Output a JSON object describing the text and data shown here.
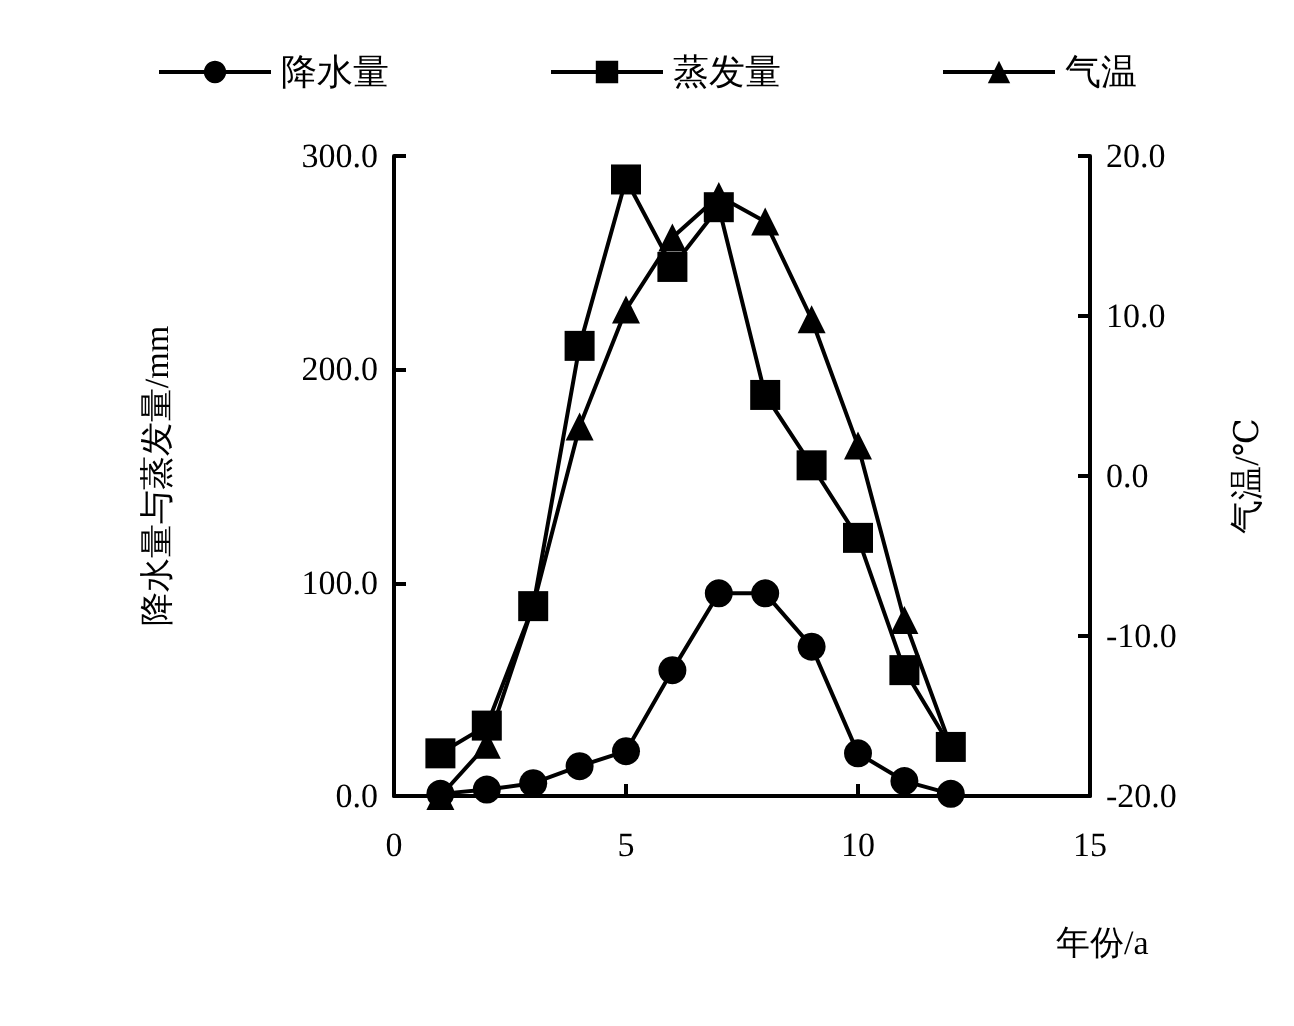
{
  "chart_data": {
    "type": "line",
    "xlabel": "年份/a",
    "ylabel": "降水量与蒸发量/mm",
    "y2label": "气温/℃",
    "x": [
      1,
      2,
      3,
      4,
      5,
      6,
      7,
      8,
      9,
      10,
      11,
      12
    ],
    "series": [
      {
        "name": "降水量",
        "color": "#000000",
        "marker": "circle",
        "values": [
          1,
          3,
          6,
          14,
          21,
          59,
          95,
          95,
          70,
          20,
          7,
          1
        ]
      },
      {
        "name": "蒸发量",
        "color": "#000000",
        "marker": "square",
        "values": [
          20,
          33,
          89,
          211,
          289,
          248,
          276,
          188,
          155,
          121,
          59,
          23
        ]
      },
      {
        "name": "气温",
        "color": "#000000",
        "marker": "triangle",
        "axis": "y2",
        "values": [
          -20,
          -16.8,
          -8.1,
          3.1,
          10.4,
          14.9,
          17.5,
          15.9,
          9.8,
          1.9,
          -9,
          -16.9
        ]
      }
    ],
    "xlim": [
      0,
      15
    ],
    "xticks": [
      0,
      5,
      10,
      15
    ],
    "ylim": [
      0,
      300
    ],
    "yticks": [
      {
        "value": 0,
        "label": "0.0"
      },
      {
        "value": 100,
        "label": "100.0"
      },
      {
        "value": 200,
        "label": "200.0"
      },
      {
        "value": 300,
        "label": "300.0"
      }
    ],
    "y2lim": [
      -20,
      20
    ],
    "y2ticks": [
      {
        "value": -20,
        "label": "-20.0"
      },
      {
        "value": -10,
        "label": "-10.0"
      },
      {
        "value": 0,
        "label": "0.0"
      },
      {
        "value": 10,
        "label": "10.0"
      },
      {
        "value": 20,
        "label": "20.0"
      }
    ],
    "grid": false,
    "legend": "top",
    "line_style": "solid"
  }
}
